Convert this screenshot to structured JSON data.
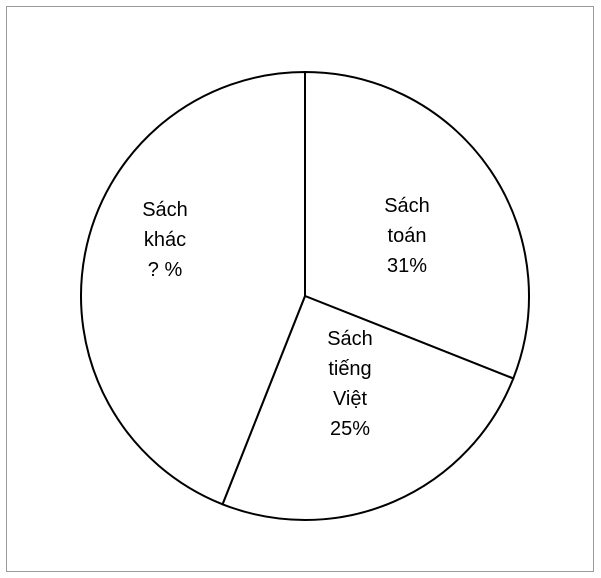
{
  "chart_data": {
    "type": "pie",
    "slices": [
      {
        "lines": [
          "Sách",
          "toán",
          "31%"
        ],
        "value": 31
      },
      {
        "lines": [
          "Sách",
          "tiếng",
          "Việt",
          "25%"
        ],
        "value": 25
      },
      {
        "lines": [
          "Sách",
          "khác",
          "? %"
        ],
        "value": 44
      }
    ],
    "colors": {
      "fill": "#ffffff",
      "stroke": "#000000",
      "frame": "#9a9a9a"
    }
  }
}
